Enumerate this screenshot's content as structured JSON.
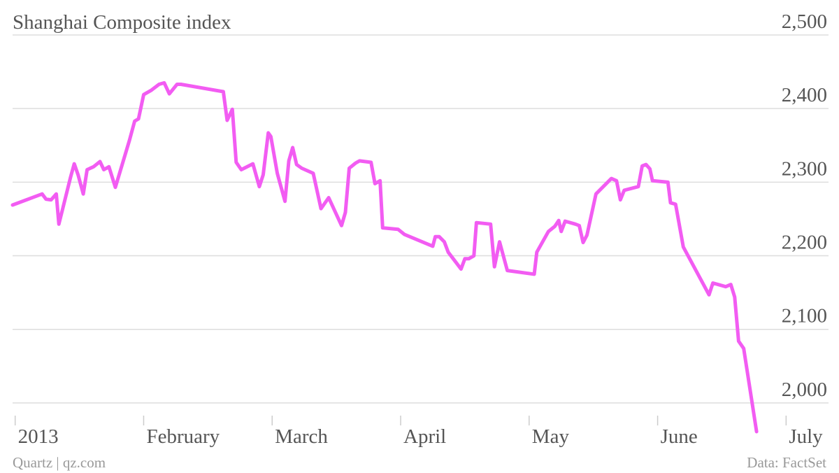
{
  "chart_data": {
    "type": "line",
    "title": "Shanghai Composite index",
    "credit": "Quartz | qz.com",
    "source": "Data: FactSet",
    "color": "#f25cf2",
    "grid": true,
    "xlim": [
      -0.02,
      6.33
    ],
    "xticks": [
      {
        "value": 0,
        "label": "2013"
      },
      {
        "value": 1,
        "label": "February"
      },
      {
        "value": 2,
        "label": "March"
      },
      {
        "value": 3,
        "label": "April"
      },
      {
        "value": 4,
        "label": "May"
      },
      {
        "value": 5,
        "label": "June"
      },
      {
        "value": 6,
        "label": "July"
      }
    ],
    "ylim": [
      1960,
      2500
    ],
    "yticks": [
      {
        "value": 2000,
        "label": "2,000"
      },
      {
        "value": 2100,
        "label": "2,100"
      },
      {
        "value": 2200,
        "label": "2,200"
      },
      {
        "value": 2300,
        "label": "2,300"
      },
      {
        "value": 2400,
        "label": "2,400"
      },
      {
        "value": 2500,
        "label": "2,500"
      }
    ],
    "x": [
      -0.02,
      0.21,
      0.24,
      0.28,
      0.32,
      0.34,
      0.43,
      0.46,
      0.49,
      0.53,
      0.56,
      0.61,
      0.66,
      0.69,
      0.73,
      0.78,
      0.89,
      0.93,
      0.96,
      1.0,
      1.06,
      1.12,
      1.16,
      1.2,
      1.26,
      1.29,
      1.62,
      1.65,
      1.69,
      1.72,
      1.76,
      1.85,
      1.9,
      1.93,
      1.97,
      1.99,
      2.04,
      2.1,
      2.13,
      2.16,
      2.19,
      2.23,
      2.32,
      2.38,
      2.44,
      2.54,
      2.57,
      2.6,
      2.65,
      2.68,
      2.77,
      2.8,
      2.84,
      2.86,
      2.98,
      3.03,
      3.25,
      3.27,
      3.3,
      3.34,
      3.37,
      3.47,
      3.5,
      3.53,
      3.57,
      3.59,
      3.7,
      3.73,
      3.77,
      3.83,
      4.04,
      4.06,
      4.15,
      4.2,
      4.23,
      4.25,
      4.28,
      4.36,
      4.39,
      4.42,
      4.45,
      4.52,
      4.64,
      4.68,
      4.71,
      4.74,
      4.85,
      4.88,
      4.91,
      4.94,
      4.96,
      5.08,
      5.1,
      5.14,
      5.2,
      5.4,
      5.43,
      5.53,
      5.57,
      5.6,
      5.63,
      5.67,
      5.77
    ],
    "values": [
      2269,
      2284,
      2277,
      2276,
      2284,
      2243,
      2306,
      2325,
      2310,
      2284,
      2317,
      2321,
      2328,
      2317,
      2321,
      2293,
      2357,
      2383,
      2386,
      2419,
      2425,
      2433,
      2435,
      2420,
      2433,
      2433,
      2423,
      2384,
      2399,
      2327,
      2317,
      2325,
      2294,
      2310,
      2367,
      2362,
      2312,
      2274,
      2329,
      2347,
      2324,
      2319,
      2312,
      2264,
      2279,
      2241,
      2259,
      2319,
      2326,
      2329,
      2327,
      2298,
      2302,
      2238,
      2236,
      2229,
      2213,
      2226,
      2226,
      2219,
      2205,
      2182,
      2196,
      2196,
      2200,
      2245,
      2243,
      2185,
      2219,
      2180,
      2175,
      2205,
      2233,
      2240,
      2248,
      2233,
      2247,
      2243,
      2241,
      2218,
      2228,
      2284,
      2305,
      2302,
      2276,
      2289,
      2294,
      2322,
      2324,
      2318,
      2302,
      2300,
      2272,
      2270,
      2212,
      2147,
      2163,
      2158,
      2161,
      2144,
      2084,
      2074,
      1961
    ]
  }
}
